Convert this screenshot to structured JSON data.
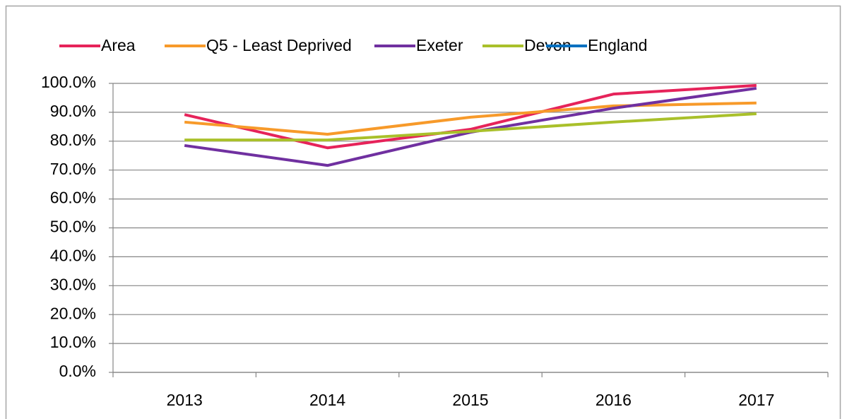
{
  "chart_data": {
    "type": "line",
    "categories": [
      "2013",
      "2014",
      "2015",
      "2016",
      "2017"
    ],
    "series": [
      {
        "name": "Area",
        "color": "#e6235a",
        "values": [
          89.2,
          77.7,
          84.1,
          96.3,
          99.3
        ]
      },
      {
        "name": "Q5 - Least Deprived",
        "color": "#f79a2a",
        "values": [
          86.6,
          82.4,
          88.3,
          92.2,
          93.2
        ]
      },
      {
        "name": "Exeter",
        "color": "#7030a0",
        "values": [
          78.5,
          71.6,
          83.1,
          91.4,
          98.3
        ]
      },
      {
        "name": "Devon",
        "color": "#a9c02a",
        "values": [
          80.4,
          80.4,
          83.4,
          86.6,
          89.5
        ]
      },
      {
        "name": "England",
        "color": "#0070c0",
        "values": [
          null,
          null,
          null,
          null,
          null
        ]
      }
    ],
    "ylim": [
      0,
      100
    ],
    "yticks": [
      {
        "value": 0,
        "label": "0.0%"
      },
      {
        "value": 10,
        "label": "10.0%"
      },
      {
        "value": 20,
        "label": "20.0%"
      },
      {
        "value": 30,
        "label": "30.0%"
      },
      {
        "value": 40,
        "label": "40.0%"
      },
      {
        "value": 50,
        "label": "50.0%"
      },
      {
        "value": 60,
        "label": "60.0%"
      },
      {
        "value": 70,
        "label": "70.0%"
      },
      {
        "value": 80,
        "label": "80.0%"
      },
      {
        "value": 90,
        "label": "90.0%"
      },
      {
        "value": 100,
        "label": "100.0%"
      }
    ],
    "grid": true,
    "legend": "top"
  }
}
